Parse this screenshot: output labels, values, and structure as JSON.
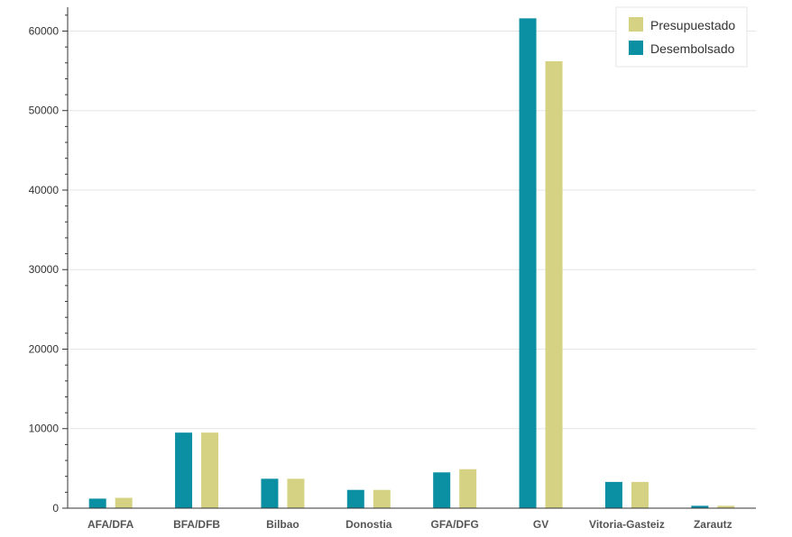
{
  "chart_data": {
    "type": "bar",
    "title": "",
    "xlabel": "",
    "ylabel": "",
    "categories": [
      "AFA/DFA",
      "BFA/DFB",
      "Bilbao",
      "Donostia",
      "GFA/DFG",
      "GV",
      "Vitoria-Gasteiz",
      "Zarautz"
    ],
    "series": [
      {
        "name": "Desembolsado",
        "color": "#0b8fa3",
        "values": [
          1200,
          9500,
          3700,
          2300,
          4500,
          61600,
          3300,
          300
        ]
      },
      {
        "name": "Presupuestado",
        "color": "#d6d283",
        "values": [
          1300,
          9500,
          3700,
          2300,
          4900,
          56200,
          3300,
          300
        ]
      }
    ],
    "ylim": [
      0,
      63000
    ],
    "y_ticks": [
      0,
      10000,
      20000,
      30000,
      40000,
      50000,
      60000
    ],
    "y_tick_labels": [
      "0",
      "10000",
      "20000",
      "30000",
      "40000",
      "50000",
      "60000"
    ],
    "grid": true,
    "legend": {
      "placement": "top-right",
      "entries": [
        "Presupuestado",
        "Desembolsado"
      ]
    }
  }
}
